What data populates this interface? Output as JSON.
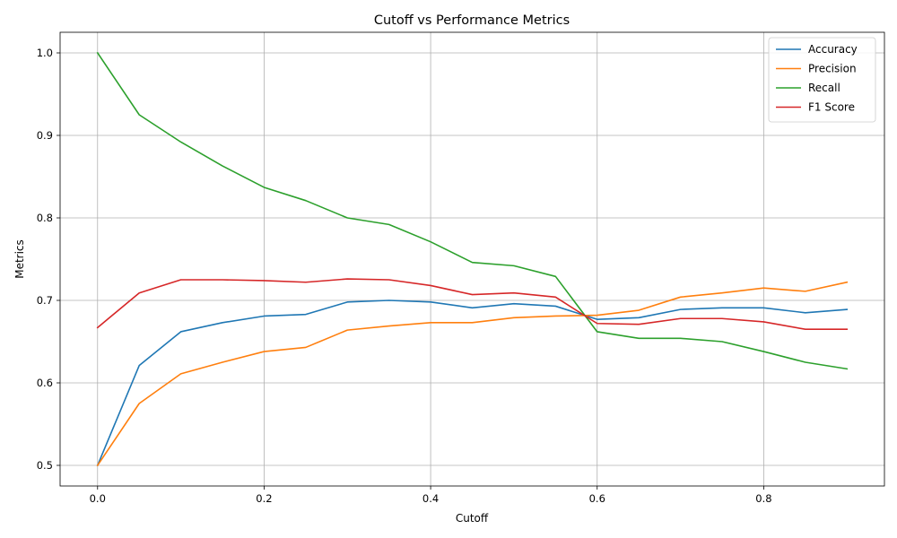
{
  "chart_data": {
    "type": "line",
    "title": "Cutoff vs Performance Metrics",
    "xlabel": "Cutoff",
    "ylabel": "Metrics",
    "xlim": [
      -0.045,
      0.945
    ],
    "ylim": [
      0.475,
      1.025
    ],
    "xticks": [
      0.0,
      0.2,
      0.4,
      0.6,
      0.8
    ],
    "xtick_labels": [
      "0.0",
      "0.2",
      "0.4",
      "0.6",
      "0.8"
    ],
    "yticks": [
      0.5,
      0.6,
      0.7,
      0.8,
      0.9,
      1.0
    ],
    "ytick_labels": [
      "0.5",
      "0.6",
      "0.7",
      "0.8",
      "0.9",
      "1.0"
    ],
    "grid": true,
    "legend_position": "top-right",
    "x": [
      0.0,
      0.05,
      0.1,
      0.15,
      0.2,
      0.25,
      0.3,
      0.35,
      0.4,
      0.45,
      0.5,
      0.55,
      0.6,
      0.65,
      0.7,
      0.75,
      0.8,
      0.85,
      0.9
    ],
    "series": [
      {
        "name": "Accuracy",
        "color": "#1f77b4",
        "values": [
          0.5,
          0.621,
          0.662,
          0.673,
          0.681,
          0.683,
          0.698,
          0.7,
          0.698,
          0.691,
          0.696,
          0.693,
          0.677,
          0.679,
          0.689,
          0.691,
          0.691,
          0.685,
          0.689
        ]
      },
      {
        "name": "Precision",
        "color": "#ff7f0e",
        "values": [
          0.5,
          0.575,
          0.611,
          0.625,
          0.638,
          0.643,
          0.664,
          0.669,
          0.673,
          0.673,
          0.679,
          0.681,
          0.682,
          0.688,
          0.704,
          0.709,
          0.715,
          0.711,
          0.722
        ]
      },
      {
        "name": "Recall",
        "color": "#2ca02c",
        "values": [
          1.0,
          0.925,
          0.892,
          0.863,
          0.837,
          0.821,
          0.8,
          0.792,
          0.771,
          0.746,
          0.742,
          0.729,
          0.662,
          0.654,
          0.654,
          0.65,
          0.638,
          0.625,
          0.617
        ]
      },
      {
        "name": "F1 Score",
        "color": "#d62728",
        "values": [
          0.667,
          0.709,
          0.725,
          0.725,
          0.724,
          0.722,
          0.726,
          0.725,
          0.718,
          0.707,
          0.709,
          0.704,
          0.672,
          0.671,
          0.678,
          0.678,
          0.674,
          0.665,
          0.665
        ]
      }
    ]
  }
}
